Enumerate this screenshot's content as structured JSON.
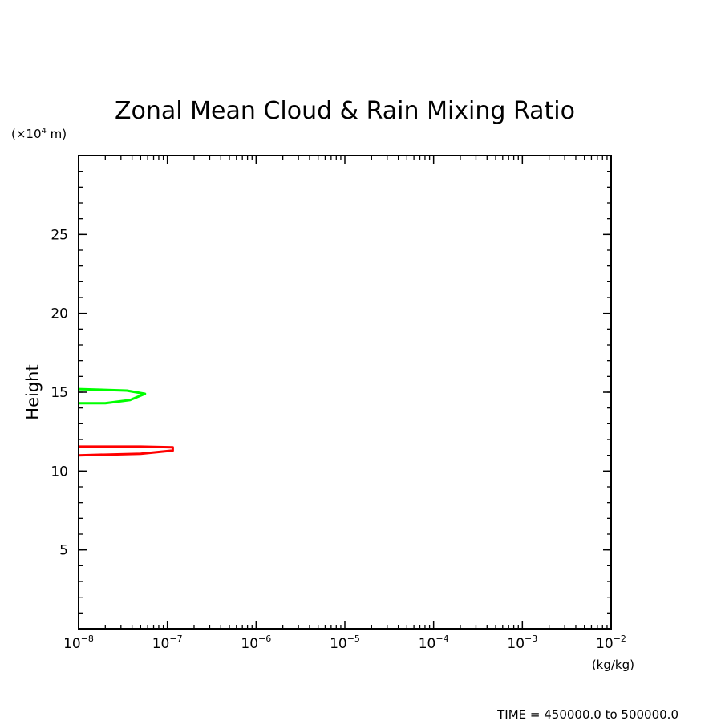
{
  "chart_data": {
    "type": "line",
    "title": "Zonal Mean Cloud & Rain Mixing Ratio",
    "xlabel": "(kg/kg)",
    "ylabel": "Height",
    "yunit_prefix": "(×10",
    "yunit_exp": "4",
    "yunit_suffix": " m)",
    "xscale": "log",
    "xlim": [
      1e-08,
      0.01
    ],
    "ylim": [
      0,
      30
    ],
    "x_ticks": [
      {
        "base": "10",
        "exp": "−8",
        "value": 1e-08
      },
      {
        "base": "10",
        "exp": "−7",
        "value": 1e-07
      },
      {
        "base": "10",
        "exp": "−6",
        "value": 1e-06
      },
      {
        "base": "10",
        "exp": "−5",
        "value": 1e-05
      },
      {
        "base": "10",
        "exp": "−4",
        "value": 0.0001
      },
      {
        "base": "10",
        "exp": "−3",
        "value": 0.001
      },
      {
        "base": "10",
        "exp": "−2",
        "value": 0.01
      }
    ],
    "y_ticks": [
      {
        "label": "5",
        "value": 5
      },
      {
        "label": "10",
        "value": 10
      },
      {
        "label": "15",
        "value": 15
      },
      {
        "label": "20",
        "value": 20
      },
      {
        "label": "25",
        "value": 25
      }
    ],
    "series": [
      {
        "color": "#00ff00",
        "x": [
          1e-08,
          3.5e-08,
          5.6e-08,
          3.8e-08,
          2e-08,
          1e-08
        ],
        "y": [
          15.2,
          15.1,
          14.9,
          14.5,
          14.3,
          14.3
        ]
      },
      {
        "color": "#ff0000",
        "x": [
          1e-08,
          5e-08,
          1.15e-07,
          1.15e-07,
          5e-08,
          1e-08
        ],
        "y": [
          11.55,
          11.55,
          11.5,
          11.3,
          11.1,
          11.0
        ]
      }
    ],
    "footer": "TIME = 450000.0 to 500000.0"
  }
}
